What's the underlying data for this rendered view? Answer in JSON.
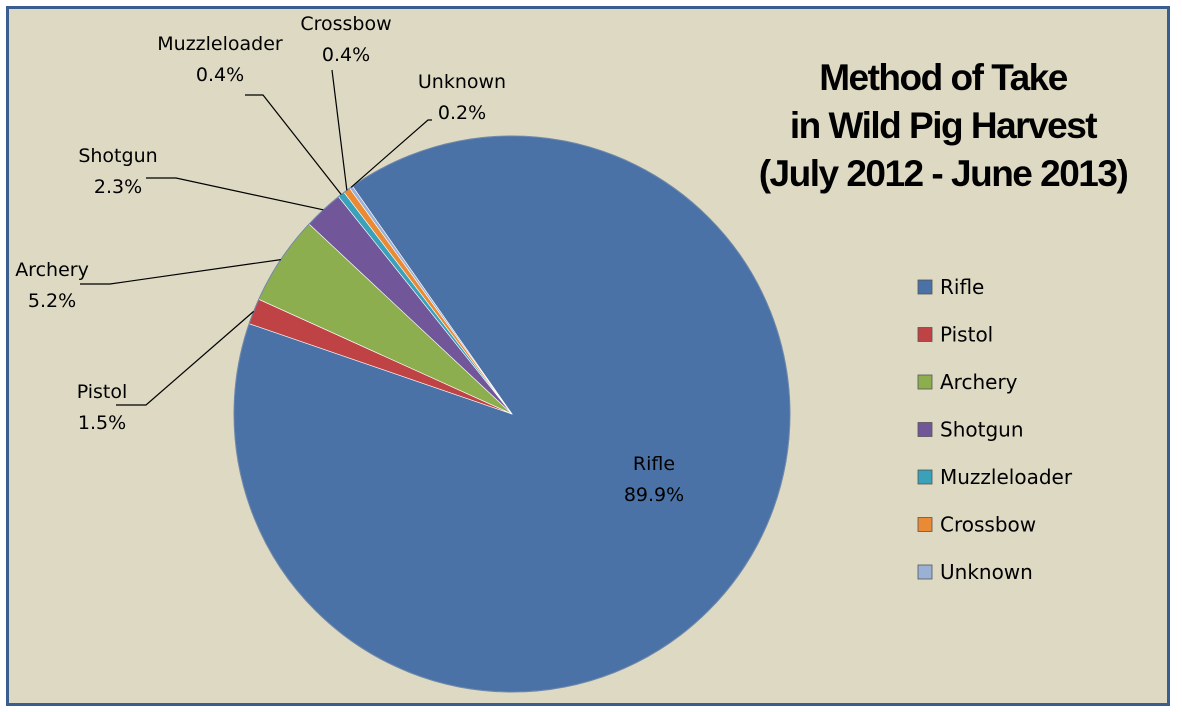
{
  "chart_data": {
    "type": "pie",
    "title": [
      "Method of Take",
      "in Wild Pig Harvest",
      "(July 2012 - June 2013)"
    ],
    "slices": [
      {
        "name": "Rifle",
        "value": 89.9,
        "label": "89.9%",
        "color": "#4a72a6"
      },
      {
        "name": "Pistol",
        "value": 1.5,
        "label": "1.5%",
        "color": "#bf4344"
      },
      {
        "name": "Archery",
        "value": 5.2,
        "label": "5.2%",
        "color": "#8cae4f"
      },
      {
        "name": "Shotgun",
        "value": 2.3,
        "label": "2.3%",
        "color": "#72569a"
      },
      {
        "name": "Muzzleloader",
        "value": 0.4,
        "label": "0.4%",
        "color": "#3aa1bb"
      },
      {
        "name": "Crossbow",
        "value": 0.4,
        "label": "0.4%",
        "color": "#ea8a34"
      },
      {
        "name": "Unknown",
        "value": 0.2,
        "label": "0.2%",
        "color": "#9ab0d5"
      }
    ],
    "legend": {
      "position": "right"
    },
    "background_color": "#ddd9c3",
    "border_color": "#3a5f8f"
  }
}
